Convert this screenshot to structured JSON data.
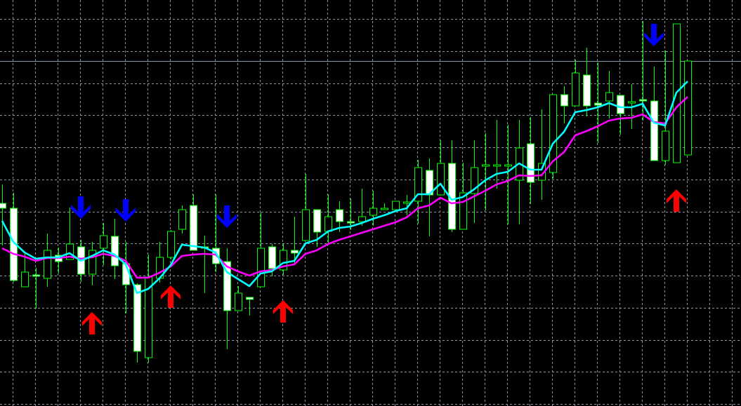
{
  "chart_data": {
    "type": "candlestick",
    "title": "",
    "xlabel": "",
    "ylabel": "",
    "ylim": [
      0,
      57.6
    ],
    "grid": true,
    "colors": {
      "background": "#000000",
      "grid": "#8a96a3",
      "wick": "#00ff00",
      "bull_body": "#000000",
      "bear_body": "#ffffff",
      "body_outline": "#00ff00",
      "fast_line": "#00ffff",
      "slow_line": "#ff00ff",
      "sell_arrow": "#0000ff",
      "buy_arrow": "#ff0000",
      "bid_line": "#8a96a3"
    },
    "candles": [
      [
        28.6,
        31.3,
        22.6,
        27.9
      ],
      [
        27.9,
        30.1,
        17.4,
        17.6
      ],
      [
        16.7,
        21.6,
        16.7,
        18.8
      ],
      [
        18.4,
        19.4,
        13.6,
        18.2
      ],
      [
        17.9,
        24.3,
        16.7,
        21.9
      ],
      [
        21.2,
        22.3,
        18.6,
        20.3
      ],
      [
        20.6,
        28.0,
        20.6,
        22.8
      ],
      [
        22.4,
        23.4,
        17.4,
        18.5
      ],
      [
        18.5,
        23.1,
        16.9,
        21.9
      ],
      [
        22.2,
        25.8,
        19.8,
        24.0
      ],
      [
        23.9,
        26.4,
        17.8,
        19.7
      ],
      [
        20.0,
        23.1,
        12.9,
        17.0
      ],
      [
        17.0,
        17.2,
        5.9,
        7.5
      ],
      [
        6.6,
        21.3,
        5.9,
        18.1
      ],
      [
        17.9,
        23.1,
        17.3,
        20.9
      ],
      [
        20.9,
        24.8,
        20.6,
        24.6
      ],
      [
        24.9,
        28.3,
        24.3,
        27.7
      ],
      [
        28.3,
        29.9,
        21.9,
        21.9
      ],
      [
        22.4,
        24.0,
        15.8,
        22.3
      ],
      [
        22.2,
        29.9,
        18.8,
        20.0
      ],
      [
        20.3,
        22.2,
        7.8,
        13.3
      ],
      [
        13.3,
        16.8,
        13.3,
        15.8
      ],
      [
        15.2,
        15.2,
        12.6,
        14.9
      ],
      [
        16.7,
        27.3,
        16.7,
        22.2
      ],
      [
        22.4,
        22.8,
        18.2,
        19.3
      ],
      [
        19.1,
        22.9,
        18.4,
        21.9
      ],
      [
        21.9,
        26.7,
        20.1,
        21.5
      ],
      [
        23.3,
        32.8,
        23.3,
        27.7
      ],
      [
        27.7,
        27.7,
        22.4,
        24.5
      ],
      [
        24.6,
        29.9,
        22.9,
        26.7
      ],
      [
        27.7,
        28.9,
        24.5,
        26.0
      ],
      [
        26.0,
        29.3,
        24.8,
        25.8
      ],
      [
        26.0,
        30.7,
        25.4,
        26.7
      ],
      [
        26.9,
        30.4,
        25.4,
        27.9
      ],
      [
        27.7,
        28.6,
        27.7,
        27.9
      ],
      [
        27.7,
        28.9,
        27.7,
        28.9
      ],
      [
        28.8,
        29.8,
        26.9,
        28.8
      ],
      [
        28.9,
        34.8,
        25.7,
        33.7
      ],
      [
        33.3,
        35.0,
        23.9,
        29.8
      ],
      [
        29.8,
        37.6,
        29.8,
        34.3
      ],
      [
        34.3,
        37.6,
        24.5,
        24.9
      ],
      [
        24.9,
        34.4,
        24.9,
        30.1
      ],
      [
        30.0,
        37.6,
        25.8,
        33.7
      ],
      [
        34.1,
        38.6,
        27.6,
        34.1
      ],
      [
        34.1,
        40.5,
        30.7,
        34.1
      ],
      [
        34.1,
        39.8,
        25.6,
        34.1
      ],
      [
        31.9,
        40.5,
        25.6,
        36.5
      ],
      [
        37.1,
        40.9,
        28.5,
        31.6
      ],
      [
        31.9,
        42.0,
        29.1,
        34.3
      ],
      [
        33.0,
        44.1,
        32.1,
        44.1
      ],
      [
        44.1,
        45.3,
        40.0,
        42.5
      ],
      [
        42.5,
        49.1,
        42.5,
        47.2
      ],
      [
        46.9,
        50.8,
        41.0,
        42.5
      ],
      [
        42.9,
        48.7,
        37.2,
        42.6
      ],
      [
        43.2,
        47.5,
        40.7,
        44.4
      ],
      [
        44.0,
        44.0,
        38.4,
        41.4
      ],
      [
        43.1,
        45.6,
        39.2,
        43.1
      ],
      [
        43.4,
        54.6,
        40.4,
        43.2
      ],
      [
        43.2,
        48.1,
        34.7,
        34.7
      ],
      [
        34.7,
        50.4,
        34.1,
        38.9
      ],
      [
        34.4,
        54.2,
        34.4,
        54.2
      ],
      [
        35.5,
        48.9,
        35.5,
        48.9
      ]
    ],
    "series": [
      {
        "values": [
          26.1,
          23.1,
          21.6,
          20.7,
          20.9,
          20.9,
          21.5,
          20.4,
          21.1,
          21.9,
          21.3,
          19.9,
          15.8,
          16.4,
          17.9,
          19.8,
          22.7,
          22.5,
          22.3,
          21.6,
          18.8,
          17.8,
          16.8,
          18.6,
          18.9,
          20.1,
          20.4,
          22.9,
          23.4,
          24.6,
          25.1,
          25.3,
          25.8,
          26.4,
          26.9,
          27.5,
          27.9,
          29.9,
          29.9,
          31.4,
          29.1,
          29.5,
          30.6,
          31.9,
          32.8,
          33.1,
          34.3,
          33.4,
          33.4,
          37.1,
          38.8,
          41.6,
          41.9,
          42.3,
          42.9,
          42.3,
          42.3,
          42.8,
          40.1,
          39.7,
          44.4,
          46.0
        ]
      },
      {
        "values": [
          22.2,
          21.4,
          21.0,
          20.4,
          20.8,
          20.8,
          21.0,
          20.7,
          20.9,
          21.4,
          21.1,
          20.4,
          18.0,
          18.0,
          18.7,
          19.6,
          21.1,
          21.3,
          21.4,
          21.3,
          19.6,
          18.9,
          18.3,
          18.9,
          19.1,
          19.6,
          19.9,
          21.4,
          21.9,
          22.8,
          23.4,
          23.9,
          24.4,
          24.9,
          25.4,
          25.9,
          26.6,
          27.9,
          28.3,
          29.4,
          28.6,
          28.8,
          29.6,
          30.4,
          31.3,
          31.8,
          32.6,
          32.5,
          32.6,
          34.6,
          35.9,
          38.3,
          38.9,
          39.6,
          40.4,
          40.7,
          40.8,
          41.3,
          40.2,
          40.0,
          42.3,
          43.8
        ]
      }
    ],
    "signals": [
      {
        "type": "sell",
        "bar": 7,
        "price": 26.4
      },
      {
        "type": "sell",
        "bar": 11,
        "price": 26.0
      },
      {
        "type": "sell",
        "bar": 20,
        "price": 25.1
      },
      {
        "type": "sell",
        "bar": 58,
        "price": 51.0
      },
      {
        "type": "buy",
        "bar": 8,
        "price": 13.1
      },
      {
        "type": "buy",
        "bar": 15,
        "price": 16.9
      },
      {
        "type": "buy",
        "bar": 25,
        "price": 14.8
      },
      {
        "type": "buy",
        "bar": 60,
        "price": 30.6
      }
    ],
    "bid_price": 48.9
  }
}
